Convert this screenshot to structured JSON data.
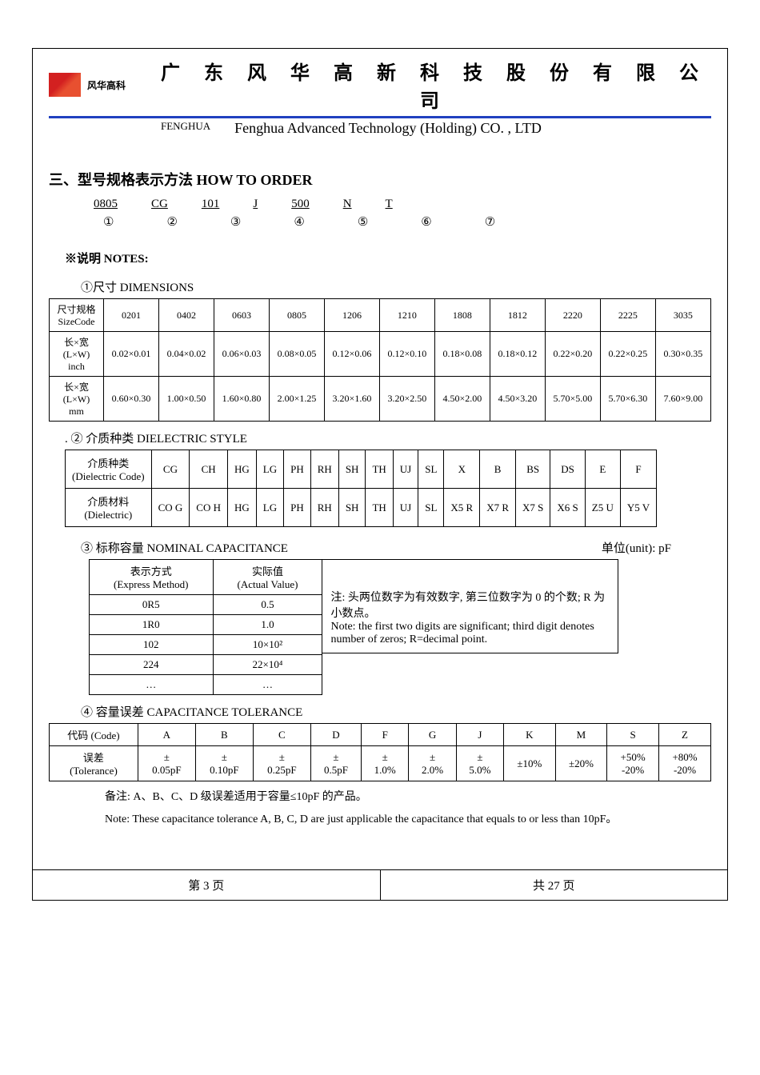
{
  "header": {
    "logo_label": "风华高科",
    "company_cn": "广 东 风 华 高 新 科 技 股 份 有 限 公 司",
    "fenghua_small": "FENGHUA",
    "company_en": "Fenghua Advanced Technology (Holding) CO. , LTD"
  },
  "section3": {
    "title": "三、型号规格表示方法    HOW TO ORDER",
    "parts": [
      "0805",
      "CG",
      "101",
      "J",
      "500",
      "N",
      "T"
    ],
    "nums": [
      "①",
      "②",
      "③",
      "④",
      "⑤",
      "⑥",
      "⑦"
    ]
  },
  "notes_label": "※说明 NOTES:",
  "sub1": {
    "title": "①尺寸    DIMENSIONS",
    "row_labels": [
      "尺寸规格\nSizeCode",
      "长×宽\n(L×W)\ninch",
      "长×宽\n(L×W)\nmm"
    ],
    "codes": [
      "0201",
      "0402",
      "0603",
      "0805",
      "1206",
      "1210",
      "1808",
      "1812",
      "2220",
      "2225",
      "3035"
    ],
    "inch": [
      "0.02×0.01",
      "0.04×0.02",
      "0.06×0.03",
      "0.08×0.05",
      "0.12×0.06",
      "0.12×0.10",
      "0.18×0.08",
      "0.18×0.12",
      "0.22×0.20",
      "0.22×0.25",
      "0.30×0.35"
    ],
    "mm": [
      "0.60×0.30",
      "1.00×0.50",
      "1.60×0.80",
      "2.00×1.25",
      "3.20×1.60",
      "3.20×2.50",
      "4.50×2.00",
      "4.50×3.20",
      "5.70×5.00",
      "5.70×6.30",
      "7.60×9.00"
    ]
  },
  "sub2": {
    "title": ".  ② 介质种类 DIELECTRIC STYLE",
    "row1_label": "介质种类\n(Dielectric Code)",
    "row1": [
      "CG",
      "CH",
      "HG",
      "LG",
      "PH",
      "RH",
      "SH",
      "TH",
      "UJ",
      "SL",
      "X",
      "B",
      "BS",
      "DS",
      "E",
      "F"
    ],
    "row2_label": "介质材料\n(Dielectric)",
    "row2": [
      "CO G",
      "CO H",
      "HG",
      "LG",
      "PH",
      "RH",
      "SH",
      "TH",
      "UJ",
      "SL",
      "X5 R",
      "X7 R",
      "X7 S",
      "X6 S",
      "Z5 U",
      "Y5 V"
    ]
  },
  "sub3": {
    "title": "③ 标称容量  NOMINAL CAPACITANCE",
    "unit_label": "单位(unit):  pF",
    "col1": "表示方式\n(Express Method)",
    "col2": "实际值\n(Actual Value)",
    "rows": [
      [
        "0R5",
        "0.5"
      ],
      [
        "1R0",
        "1.0"
      ],
      [
        "102",
        "10×10²"
      ],
      [
        "224",
        "22×10⁴"
      ],
      [
        "…",
        "…"
      ]
    ],
    "note_cn": "注: 头两位数字为有效数字, 第三位数字为 0 的个数; R 为小数点。",
    "note_en": "Note: the first two digits are significant; third digit denotes number of zeros; R=decimal point."
  },
  "sub4": {
    "title": "④ 容量误差 CAPACITANCE TOLERANCE",
    "row1_label": "代码 (Code)",
    "codes": [
      "A",
      "B",
      "C",
      "D",
      "F",
      "G",
      "J",
      "K",
      "M",
      "S",
      "Z"
    ],
    "row2_label": "误差\n(Tolerance)",
    "vals": [
      "±\n0.05pF",
      "±\n0.10pF",
      "±\n0.25pF",
      "±\n0.5pF",
      "±\n1.0%",
      "±\n2.0%",
      "±\n5.0%",
      "±10%",
      "±20%",
      "+50%\n-20%",
      "+80%\n-20%"
    ],
    "note_cn": "备注: A、B、C、D 级误差适用于容量≤10pF 的产品。",
    "note_en": "Note: These capacitance tolerance A, B, C, D are just applicable the capacitance that equals to or less than 10pF。"
  },
  "footer": {
    "left": "第  3  页",
    "right": "共  27  页"
  }
}
